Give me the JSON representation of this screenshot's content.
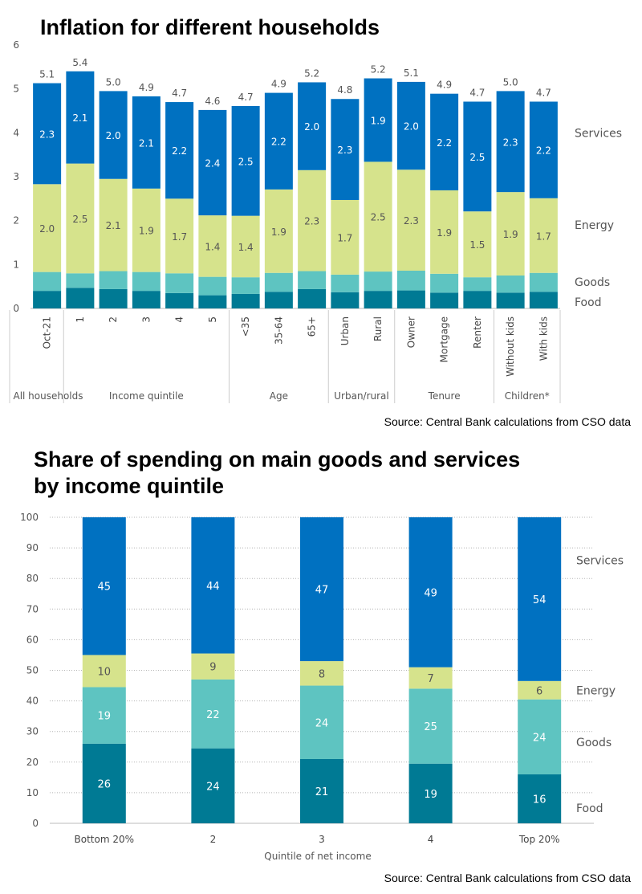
{
  "chart_data": [
    {
      "type": "bar",
      "stacked": true,
      "title": "Inflation for different households",
      "source": "Source: Central Bank calculations from CSO data",
      "ylim": [
        0,
        6
      ],
      "yticks": [
        "0",
        "1",
        "2",
        "3",
        "4",
        "5",
        "6"
      ],
      "grid": false,
      "categories": [
        "Oct-21",
        "1",
        "2",
        "3",
        "4",
        "5",
        "<35",
        "35-64",
        "65+",
        "Urban",
        "Rural",
        "Owner",
        "Mortgage",
        "Renter",
        "Without kids",
        "With kids"
      ],
      "groups": [
        {
          "label": "All households",
          "count": 1
        },
        {
          "label": "Income quintile",
          "count": 5
        },
        {
          "label": "Age",
          "count": 3
        },
        {
          "label": "Urban/rural",
          "count": 2
        },
        {
          "label": "Tenure",
          "count": 3
        },
        {
          "label": "Children*",
          "count": 2
        }
      ],
      "series": [
        {
          "name": "Food",
          "color": "#007a94",
          "values": [
            0.4,
            0.47,
            0.44,
            0.4,
            0.35,
            0.3,
            0.33,
            0.38,
            0.44,
            0.37,
            0.4,
            0.41,
            0.36,
            0.4,
            0.36,
            0.38
          ]
        },
        {
          "name": "Goods",
          "color": "#5ec4c1",
          "values": [
            0.43,
            0.33,
            0.41,
            0.43,
            0.45,
            0.42,
            0.38,
            0.43,
            0.41,
            0.4,
            0.44,
            0.45,
            0.43,
            0.31,
            0.39,
            0.43
          ]
        },
        {
          "name": "Energy",
          "color": "#d6e38c",
          "values": [
            2.0,
            2.5,
            2.1,
            1.9,
            1.7,
            1.4,
            1.4,
            1.9,
            2.3,
            1.7,
            2.5,
            2.3,
            1.9,
            1.5,
            1.9,
            1.7
          ],
          "labels": [
            "2.0",
            "2.5",
            "2.1",
            "1.9",
            "1.7",
            "1.4",
            "1.4",
            "1.9",
            "2.3",
            "1.7",
            "2.5",
            "2.3",
            "1.9",
            "1.5",
            "1.9",
            "1.7"
          ]
        },
        {
          "name": "Services",
          "color": "#0071c1",
          "values": [
            2.3,
            2.1,
            2.0,
            2.1,
            2.2,
            2.4,
            2.5,
            2.2,
            2.0,
            2.3,
            1.9,
            2.0,
            2.2,
            2.5,
            2.3,
            2.2
          ],
          "labels": [
            "2.3",
            "2.1",
            "2.0",
            "2.1",
            "2.2",
            "2.4",
            "2.5",
            "2.2",
            "2.0",
            "2.3",
            "1.9",
            "2.0",
            "2.2",
            "2.5",
            "2.3",
            "2.2"
          ]
        }
      ],
      "totals": [
        5.1,
        5.4,
        5.0,
        4.9,
        4.7,
        4.6,
        4.7,
        4.9,
        5.2,
        4.8,
        5.2,
        5.1,
        4.9,
        4.7,
        5.0,
        4.7
      ],
      "total_labels": [
        "5.1",
        "5.4",
        "5.0",
        "4.9",
        "4.7",
        "4.6",
        "4.7",
        "4.9",
        "5.2",
        "4.8",
        "5.2",
        "5.1",
        "4.9",
        "4.7",
        "5.0",
        "4.7"
      ],
      "legend": "right",
      "legend_labels": [
        {
          "name": "Services",
          "y": 4.0
        },
        {
          "name": "Energy",
          "y": 1.9
        },
        {
          "name": "Goods",
          "y": 0.6
        },
        {
          "name": "Food",
          "y": 0.15
        }
      ]
    },
    {
      "type": "bar",
      "stacked": true,
      "title": "Share of spending on main goods and services by income quintile",
      "title_lines": [
        "Share of spending on main goods and services",
        "by income quintile"
      ],
      "source": "Source: Central Bank calculations from CSO data",
      "xlabel": "Quintile of net income",
      "ylim": [
        0,
        100
      ],
      "yticks": [
        "0",
        "10",
        "20",
        "30",
        "40",
        "50",
        "60",
        "70",
        "80",
        "90",
        "100"
      ],
      "grid": true,
      "categories": [
        "Bottom 20%",
        "2",
        "3",
        "4",
        "Top 20%"
      ],
      "series": [
        {
          "name": "Food",
          "color": "#007a94",
          "values": [
            26,
            24.5,
            21,
            19.5,
            16
          ],
          "labels": [
            "26",
            "24",
            "21",
            "19",
            "16"
          ]
        },
        {
          "name": "Goods",
          "color": "#5ec4c1",
          "values": [
            18.5,
            22.5,
            24,
            24.5,
            24.5
          ],
          "labels": [
            "19",
            "22",
            "24",
            "25",
            "24"
          ]
        },
        {
          "name": "Energy",
          "color": "#d6e38c",
          "values": [
            10.5,
            8.5,
            8,
            7,
            6
          ],
          "labels": [
            "10",
            "9",
            "8",
            "7",
            "6"
          ]
        },
        {
          "name": "Services",
          "color": "#0071c1",
          "values": [
            45,
            44.5,
            47,
            49,
            53.5
          ],
          "labels": [
            "45",
            "44",
            "47",
            "49",
            "54"
          ]
        }
      ],
      "legend": "right",
      "legend_labels": [
        {
          "name": "Services",
          "y": 86
        },
        {
          "name": "Energy",
          "y": 43.5
        },
        {
          "name": "Goods",
          "y": 26.5
        },
        {
          "name": "Food",
          "y": 5
        }
      ]
    }
  ]
}
